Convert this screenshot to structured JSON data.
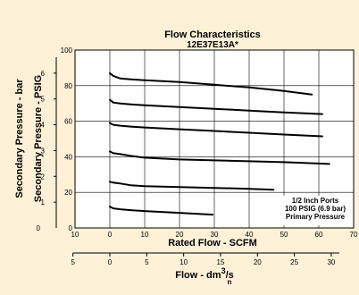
{
  "chart_data": {
    "type": "line",
    "title": "Flow Characteristics",
    "subtitle": "12E37E13A*",
    "xlabel": "Rated Flow - SCFM",
    "ylabel": "Secondary Pressure - PSIG",
    "ylabel_secondary": "Secondary Pressure - bar",
    "xlim": [
      -10,
      70
    ],
    "ylim": [
      0,
      100
    ],
    "x_ticks": [
      -10,
      0,
      10,
      20,
      30,
      40,
      50,
      60,
      70
    ],
    "x_tick_labels": [
      "10",
      "0",
      "10",
      "20",
      "30",
      "40",
      "50",
      "60",
      "70"
    ],
    "y_ticks": [
      0,
      20,
      40,
      60,
      80,
      100
    ],
    "y_tick_labels": [
      "0",
      "20",
      "40",
      "60",
      "80",
      "100"
    ],
    "bar_ticks": [
      1,
      2,
      3,
      4,
      5,
      6
    ],
    "bar_tick_labels": [
      "1",
      "2",
      "3",
      "4",
      "5",
      "6"
    ],
    "bar_zero_label": "0",
    "secondary_x": {
      "label_main": "Flow - dm",
      "label_sup": "3",
      "label_tail": "/s",
      "label_sub": "n",
      "ticks": [
        -5,
        0,
        5,
        10,
        15,
        20,
        25,
        30
      ],
      "tick_labels": [
        "5",
        "0",
        "5",
        "10",
        "15",
        "20",
        "25",
        "30"
      ]
    },
    "annotation": [
      "1/2 Inch Ports",
      "100 PSIG (6.9 bar)",
      "Primary Pressure"
    ],
    "grid": true,
    "series": [
      {
        "x": [
          0,
          1,
          3,
          6,
          10,
          20,
          30,
          40,
          50,
          58
        ],
        "y": [
          87,
          85.5,
          84,
          83.5,
          83,
          82,
          80.5,
          79,
          77,
          75
        ]
      },
      {
        "x": [
          0,
          1,
          3,
          6,
          10,
          20,
          30,
          40,
          50,
          61
        ],
        "y": [
          72,
          70.5,
          70,
          69.5,
          69,
          68,
          67,
          66,
          65,
          64
        ]
      },
      {
        "x": [
          0,
          1,
          3,
          6,
          10,
          20,
          30,
          40,
          50,
          61
        ],
        "y": [
          59,
          58,
          57.5,
          57,
          56.5,
          55.5,
          54.5,
          53.5,
          52.5,
          51.5
        ]
      },
      {
        "x": [
          0,
          1,
          3,
          6,
          10,
          20,
          30,
          40,
          50,
          63
        ],
        "y": [
          43,
          42,
          41.5,
          40.5,
          39.5,
          38.5,
          38,
          37.5,
          37,
          36
        ]
      },
      {
        "x": [
          0,
          1,
          3,
          6,
          10,
          20,
          30,
          40,
          47
        ],
        "y": [
          26,
          25.5,
          25,
          24,
          23.5,
          23,
          22.5,
          22,
          21.5
        ]
      },
      {
        "x": [
          0,
          1,
          3,
          6,
          10,
          20,
          29.5
        ],
        "y": [
          12,
          11,
          10.5,
          10,
          9.5,
          8.5,
          7.5
        ]
      }
    ]
  }
}
